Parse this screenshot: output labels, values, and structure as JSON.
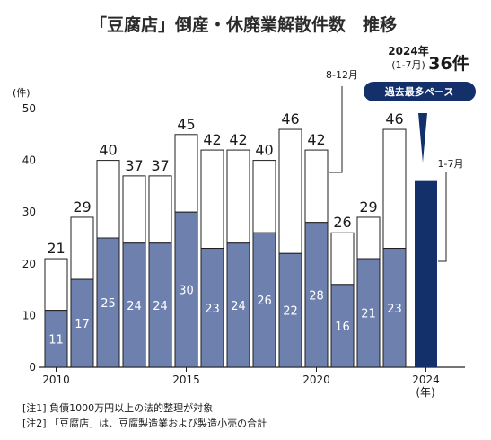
{
  "chart_data": {
    "type": "bar",
    "title": "「豆腐店」倒産・休廃業解散件数　推移",
    "ylabel": "(件)",
    "xlabel_unit": "(年)",
    "ylim": [
      0,
      50
    ],
    "yticks": [
      0,
      10,
      20,
      30,
      40,
      50
    ],
    "x_tick_labels": [
      "2010",
      "2015",
      "2020",
      "2024"
    ],
    "categories": [
      "2010",
      "2011",
      "2012",
      "2013",
      "2014",
      "2015",
      "2016",
      "2017",
      "2018",
      "2019",
      "2020",
      "2021",
      "2022",
      "2023"
    ],
    "totals": [
      21,
      29,
      40,
      37,
      37,
      45,
      42,
      42,
      40,
      46,
      42,
      26,
      29,
      46
    ],
    "series": [
      {
        "name": "1-7月",
        "values": [
          11,
          17,
          25,
          24,
          24,
          30,
          23,
          24,
          26,
          22,
          28,
          16,
          21,
          23
        ]
      },
      {
        "name": "8-12月",
        "values": [
          10,
          12,
          15,
          13,
          13,
          15,
          19,
          18,
          14,
          24,
          14,
          10,
          8,
          23
        ]
      }
    ],
    "highlight": {
      "category": "2024",
      "value": 36,
      "period_label": "2024年",
      "period_sub": "(1-7月)",
      "count_label": "36件",
      "badge": "過去最多ペース"
    },
    "annotations": {
      "upper_label": "8-12月",
      "lower_label": "1-7月"
    },
    "colors": {
      "lower": "#6e80ad",
      "upper": "#ffffff",
      "highlight": "#13306b",
      "outline": "#1f1f1f"
    },
    "grid": false
  },
  "notes": [
    "[注1]  負債1000万円以上の法的整理が対象",
    "[注2]  「豆腐店」は、豆腐製造業および製造小売の合計"
  ]
}
